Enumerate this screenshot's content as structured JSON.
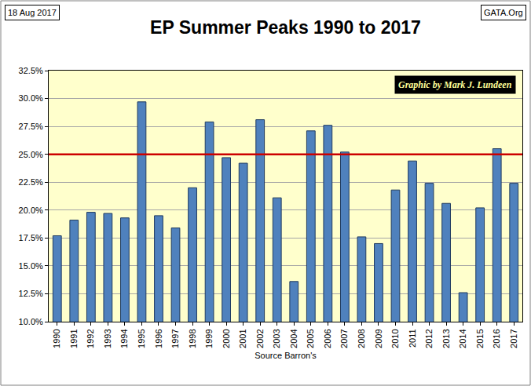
{
  "chart_data": {
    "type": "bar",
    "title": "EP Summer Peaks 1990 to 2017",
    "x_label": "Source Barron's",
    "annotations": [
      "18 Aug 2017",
      "GATA.Org",
      "Graphic by Mark J. Lundeen"
    ],
    "categories": [
      "1990",
      "1991",
      "1992",
      "1993",
      "1994",
      "1995",
      "1996",
      "1997",
      "1998",
      "1999",
      "2000",
      "2001",
      "2002",
      "2003",
      "2004",
      "2005",
      "2006",
      "2007",
      "2008",
      "2009",
      "2010",
      "2011",
      "2012",
      "2013",
      "2014",
      "2015",
      "2016",
      "2017"
    ],
    "values": [
      17.7,
      19.1,
      19.8,
      19.7,
      19.3,
      29.7,
      19.5,
      18.4,
      22.0,
      27.9,
      24.7,
      24.2,
      28.1,
      21.1,
      13.6,
      27.1,
      27.6,
      25.2,
      17.6,
      17.0,
      21.8,
      24.4,
      22.4,
      20.6,
      12.6,
      20.2,
      25.5,
      22.4
    ],
    "color": "#4f81bd",
    "reference_line": {
      "value": 25,
      "color": "#cc0000"
    },
    "ylim": [
      10,
      32.5
    ],
    "yticks": [
      {
        "value": 10,
        "label": "10.0%"
      },
      {
        "value": 12.5,
        "label": "12.5%"
      },
      {
        "value": 15,
        "label": "15.0%"
      },
      {
        "value": 17.5,
        "label": "17.5%"
      },
      {
        "value": 20,
        "label": "20.0%"
      },
      {
        "value": 22.5,
        "label": "22.5%"
      },
      {
        "value": 25,
        "label": "25.0%"
      },
      {
        "value": 27.5,
        "label": "27.5%"
      },
      {
        "value": 30,
        "label": "30.0%"
      },
      {
        "value": 32.5,
        "label": "32.5%"
      }
    ],
    "grid": true
  }
}
